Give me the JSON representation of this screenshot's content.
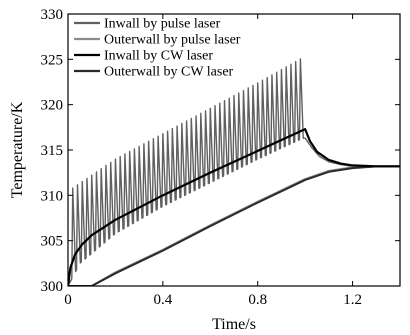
{
  "chart_data": {
    "type": "line",
    "xlabel": "Time/s",
    "ylabel": "Temperature/K",
    "xlim": [
      0,
      1.4
    ],
    "ylim": [
      300,
      330
    ],
    "xticks": [
      0,
      0.4,
      0.8,
      1.2
    ],
    "xtick_labels": [
      "0",
      "0.4",
      "0.8",
      "1.2"
    ],
    "yticks": [
      300,
      305,
      310,
      315,
      320,
      325,
      330
    ],
    "ytick_labels": [
      "300",
      "305",
      "310",
      "315",
      "320",
      "325",
      "330"
    ],
    "grid": false,
    "legend_position": "top-left",
    "series": [
      {
        "name": "Inwall by pulse laser",
        "color": "#606060",
        "style": "pulse-sawtooth",
        "pulse_period": 0.02,
        "peak_envelope_x": [
          0.02,
          0.2,
          0.4,
          0.6,
          0.8,
          0.99
        ],
        "peak_envelope_y": [
          310.8,
          314.0,
          316.8,
          319.6,
          322.4,
          325.2
        ],
        "trough_envelope_x": [
          0.0,
          0.05,
          0.2,
          0.4,
          0.6,
          0.8,
          0.99
        ],
        "trough_envelope_y": [
          300.0,
          302.5,
          305.8,
          308.8,
          311.4,
          314.0,
          316.3
        ],
        "x": [
          1.0,
          1.03,
          1.06,
          1.1,
          1.15,
          1.2,
          1.3,
          1.4
        ],
        "y": [
          316.3,
          315.2,
          314.3,
          313.7,
          313.4,
          313.2,
          313.2,
          313.2
        ]
      },
      {
        "name": "Outerwall by pulse laser",
        "color": "#8c8c8c",
        "x": [
          0.0,
          0.1,
          0.2,
          0.4,
          0.6,
          0.8,
          1.0,
          1.1,
          1.2,
          1.3,
          1.4
        ],
        "y": [
          300.0,
          300.0,
          301.5,
          304.0,
          306.7,
          309.3,
          311.8,
          312.7,
          313.1,
          313.2,
          313.2
        ]
      },
      {
        "name": "Inwall by CW laser",
        "color": "#000000",
        "x": [
          0.0,
          0.01,
          0.03,
          0.06,
          0.1,
          0.2,
          0.4,
          0.6,
          0.8,
          1.0,
          1.02,
          1.05,
          1.1,
          1.15,
          1.2,
          1.3,
          1.4
        ],
        "y": [
          300.0,
          302.0,
          303.5,
          304.6,
          305.6,
          307.3,
          310.0,
          312.5,
          314.9,
          317.3,
          316.0,
          314.8,
          313.9,
          313.5,
          313.3,
          313.2,
          313.2
        ]
      },
      {
        "name": "Outerwall by CW laser",
        "color": "#2a2a2a",
        "x": [
          0.0,
          0.1,
          0.2,
          0.4,
          0.6,
          0.8,
          1.0,
          1.1,
          1.2,
          1.3,
          1.4
        ],
        "y": [
          300.0,
          300.0,
          301.4,
          303.9,
          306.6,
          309.2,
          311.7,
          312.6,
          313.0,
          313.2,
          313.2
        ]
      }
    ]
  }
}
